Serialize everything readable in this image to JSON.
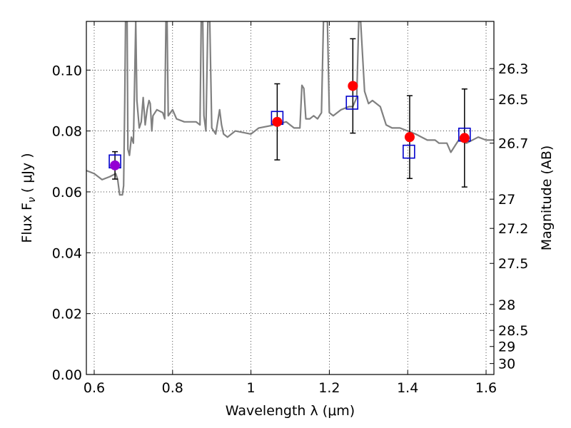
{
  "chart_data": {
    "type": "scatter",
    "xlabel": "Wavelength  λ (μm)",
    "ylabel_left": "Flux  F",
    "ylabel_left_sub": "ν",
    "ylabel_left_unit": " ( μJy )",
    "ylabel_right": "Magnitude (AB)",
    "xlim": [
      0.58,
      1.62
    ],
    "ylim": [
      0.0,
      0.116
    ],
    "grid": true,
    "x_ticks": [
      0.6,
      0.8,
      1.0,
      1.2,
      1.4,
      1.6
    ],
    "x_tick_labels": [
      "0.6",
      "0.8",
      "1",
      "1.2",
      "1.4",
      "1.6"
    ],
    "y_ticks": [
      0.0,
      0.02,
      0.04,
      0.06,
      0.08,
      0.1
    ],
    "y_tick_labels": [
      "0.00",
      "0.02",
      "0.04",
      "0.06",
      "0.08",
      "0.10"
    ],
    "right_ticks": [
      {
        "label": "26.3",
        "flux": 0.1005
      },
      {
        "label": "26.5",
        "flux": 0.0904
      },
      {
        "label": "26.7",
        "flux": 0.076
      },
      {
        "label": "27",
        "flux": 0.0576
      },
      {
        "label": "27.2",
        "flux": 0.048
      },
      {
        "label": "27.5",
        "flux": 0.0365
      },
      {
        "label": "28",
        "flux": 0.023
      },
      {
        "label": "28.5",
        "flux": 0.0145
      },
      {
        "label": "29",
        "flux": 0.0092
      },
      {
        "label": "30",
        "flux": 0.0036
      }
    ],
    "model_spectrum": {
      "color": "#808080",
      "points": [
        [
          0.58,
          0.067
        ],
        [
          0.6,
          0.066
        ],
        [
          0.62,
          0.064
        ],
        [
          0.64,
          0.065
        ],
        [
          0.655,
          0.066
        ],
        [
          0.66,
          0.064
        ],
        [
          0.665,
          0.059
        ],
        [
          0.672,
          0.059
        ],
        [
          0.675,
          0.062
        ],
        [
          0.678,
          0.09
        ],
        [
          0.68,
          0.116
        ],
        [
          0.684,
          0.116
        ],
        [
          0.686,
          0.074
        ],
        [
          0.69,
          0.072
        ],
        [
          0.695,
          0.078
        ],
        [
          0.7,
          0.076
        ],
        [
          0.703,
          0.095
        ],
        [
          0.706,
          0.116
        ],
        [
          0.709,
          0.09
        ],
        [
          0.715,
          0.081
        ],
        [
          0.72,
          0.083
        ],
        [
          0.725,
          0.091
        ],
        [
          0.73,
          0.082
        ],
        [
          0.735,
          0.087
        ],
        [
          0.74,
          0.09
        ],
        [
          0.743,
          0.089
        ],
        [
          0.747,
          0.08
        ],
        [
          0.75,
          0.085
        ],
        [
          0.76,
          0.087
        ],
        [
          0.775,
          0.086
        ],
        [
          0.78,
          0.084
        ],
        [
          0.783,
          0.116
        ],
        [
          0.786,
          0.116
        ],
        [
          0.789,
          0.085
        ],
        [
          0.8,
          0.087
        ],
        [
          0.81,
          0.084
        ],
        [
          0.83,
          0.083
        ],
        [
          0.86,
          0.083
        ],
        [
          0.87,
          0.082
        ],
        [
          0.873,
          0.116
        ],
        [
          0.877,
          0.116
        ],
        [
          0.88,
          0.085
        ],
        [
          0.885,
          0.08
        ],
        [
          0.89,
          0.116
        ],
        [
          0.895,
          0.116
        ],
        [
          0.9,
          0.081
        ],
        [
          0.91,
          0.079
        ],
        [
          0.92,
          0.087
        ],
        [
          0.925,
          0.082
        ],
        [
          0.93,
          0.079
        ],
        [
          0.94,
          0.078
        ],
        [
          0.96,
          0.08
        ],
        [
          1.0,
          0.079
        ],
        [
          1.02,
          0.081
        ],
        [
          1.06,
          0.082
        ],
        [
          1.09,
          0.083
        ],
        [
          1.1,
          0.082
        ],
        [
          1.11,
          0.081
        ],
        [
          1.125,
          0.081
        ],
        [
          1.13,
          0.095
        ],
        [
          1.135,
          0.094
        ],
        [
          1.14,
          0.084
        ],
        [
          1.15,
          0.084
        ],
        [
          1.16,
          0.085
        ],
        [
          1.17,
          0.084
        ],
        [
          1.18,
          0.086
        ],
        [
          1.185,
          0.116
        ],
        [
          1.195,
          0.116
        ],
        [
          1.2,
          0.086
        ],
        [
          1.21,
          0.085
        ],
        [
          1.22,
          0.086
        ],
        [
          1.23,
          0.087
        ],
        [
          1.25,
          0.088
        ],
        [
          1.26,
          0.088
        ],
        [
          1.27,
          0.091
        ],
        [
          1.275,
          0.116
        ],
        [
          1.28,
          0.116
        ],
        [
          1.29,
          0.093
        ],
        [
          1.3,
          0.089
        ],
        [
          1.31,
          0.09
        ],
        [
          1.33,
          0.088
        ],
        [
          1.345,
          0.082
        ],
        [
          1.36,
          0.081
        ],
        [
          1.38,
          0.081
        ],
        [
          1.4,
          0.08
        ],
        [
          1.42,
          0.079
        ],
        [
          1.45,
          0.077
        ],
        [
          1.47,
          0.077
        ],
        [
          1.48,
          0.076
        ],
        [
          1.5,
          0.076
        ],
        [
          1.51,
          0.073
        ],
        [
          1.53,
          0.077
        ],
        [
          1.55,
          0.076
        ],
        [
          1.58,
          0.078
        ],
        [
          1.6,
          0.077
        ],
        [
          1.62,
          0.077
        ]
      ]
    },
    "series": [
      {
        "marker": "circle",
        "color": "#ff0000",
        "points": [
          {
            "x": 0.653,
            "y": 0.0687,
            "err": 0.0045,
            "color": "#9400d3"
          },
          {
            "x": 1.067,
            "y": 0.083,
            "err": 0.0125
          },
          {
            "x": 1.26,
            "y": 0.0948,
            "err": 0.0155
          },
          {
            "x": 1.405,
            "y": 0.078,
            "err": 0.0136
          },
          {
            "x": 1.545,
            "y": 0.0777,
            "err": 0.0161
          }
        ]
      },
      {
        "marker": "square",
        "color": "#0000cc",
        "points": [
          {
            "x": 0.653,
            "y": 0.07
          },
          {
            "x": 1.067,
            "y": 0.0843
          },
          {
            "x": 1.258,
            "y": 0.0893
          },
          {
            "x": 1.403,
            "y": 0.0732
          },
          {
            "x": 1.545,
            "y": 0.0788
          }
        ]
      }
    ]
  }
}
